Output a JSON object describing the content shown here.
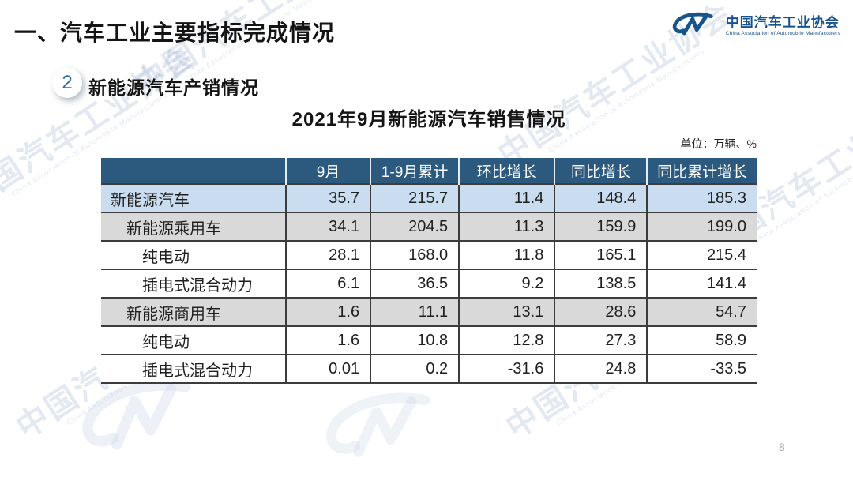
{
  "header": {
    "title": "一、汽车工业主要指标完成情况"
  },
  "logo": {
    "name": "中国汽车工业协会",
    "subname": "China Association of Automobile Manufacturers"
  },
  "section": {
    "badge_number": "2",
    "heading": "新能源汽车产销情况"
  },
  "table": {
    "title": "2021年9月新能源汽车销售情况",
    "unit_note": "单位：万辆、%",
    "columns": [
      "",
      "9月",
      "1-9月累计",
      "环比增长",
      "同比增长",
      "同比累计增长"
    ],
    "rows": [
      {
        "label": "新能源汽车",
        "indent": 0,
        "style": "blue",
        "values": [
          "35.7",
          "215.7",
          "11.4",
          "148.4",
          "185.3"
        ]
      },
      {
        "label": "新能源乘用车",
        "indent": 1,
        "style": "gray",
        "values": [
          "34.1",
          "204.5",
          "11.3",
          "159.9",
          "199.0"
        ]
      },
      {
        "label": "纯电动",
        "indent": 2,
        "style": "white",
        "values": [
          "28.1",
          "168.0",
          "11.8",
          "165.1",
          "215.4"
        ]
      },
      {
        "label": "插电式混合动力",
        "indent": 2,
        "style": "white",
        "values": [
          "6.1",
          "36.5",
          "9.2",
          "138.5",
          "141.4"
        ]
      },
      {
        "label": "新能源商用车",
        "indent": 1,
        "style": "gray",
        "values": [
          "1.6",
          "11.1",
          "13.1",
          "28.6",
          "54.7"
        ]
      },
      {
        "label": "纯电动",
        "indent": 2,
        "style": "white",
        "values": [
          "1.6",
          "10.8",
          "12.8",
          "27.3",
          "58.9"
        ]
      },
      {
        "label": "插电式混合动力",
        "indent": 2,
        "style": "white",
        "values": [
          "0.01",
          "0.2",
          "-31.6",
          "24.8",
          "-33.5"
        ]
      }
    ]
  },
  "watermark": {
    "text": "中国汽车工业协会",
    "subtext": "China Association of Automobile Manufacturers"
  },
  "footer": {
    "page_number": "8"
  },
  "colors": {
    "header_bg": "#2b5a7e",
    "row_blue": "#c9dcf0",
    "row_gray": "#d9d9d9",
    "logo_blue": "#17548e",
    "badge_text": "#2e6da4",
    "border": "#3c3c3c"
  }
}
